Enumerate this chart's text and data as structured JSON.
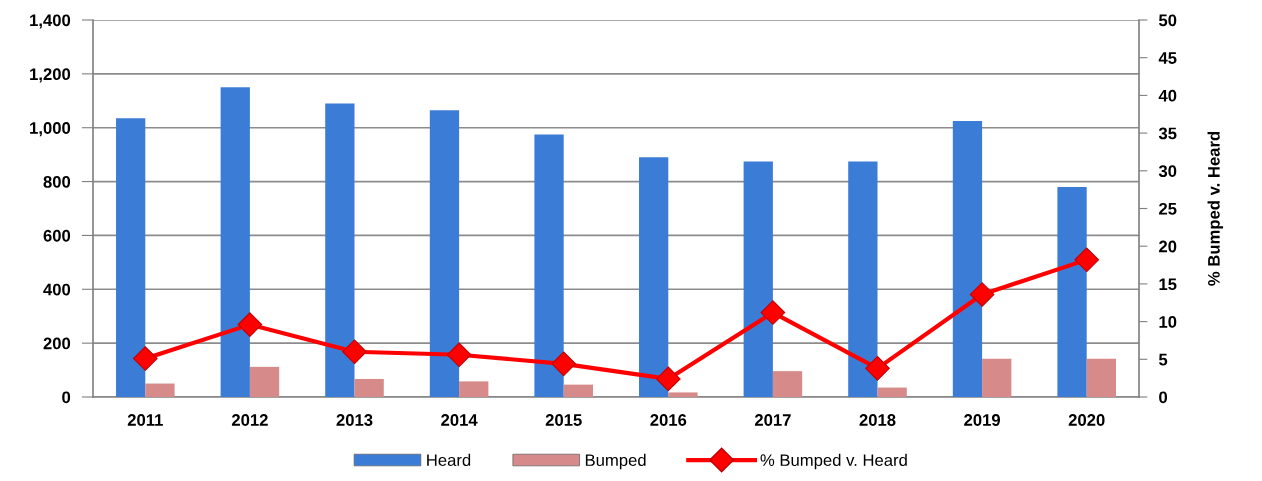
{
  "chart_data": {
    "type": "bar",
    "categories": [
      "2011",
      "2012",
      "2013",
      "2014",
      "2015",
      "2016",
      "2017",
      "2018",
      "2019",
      "2020"
    ],
    "series": [
      {
        "name": "Heard",
        "color": "#3b7dd6",
        "values": [
          1035,
          1150,
          1090,
          1065,
          975,
          890,
          875,
          875,
          1025,
          780
        ]
      },
      {
        "name": "Bumped",
        "color": "#d68a8a",
        "values": [
          50,
          112,
          67,
          58,
          46,
          17,
          96,
          35,
          142,
          142
        ]
      },
      {
        "name": "% Bumped v. Heard",
        "type": "line",
        "axis": "y2",
        "color": "#ff0000",
        "marker": "diamond",
        "values": [
          5.1,
          9.6,
          6.0,
          5.6,
          4.4,
          2.4,
          11.2,
          3.8,
          13.6,
          18.2
        ]
      }
    ],
    "y2label": "% Bumped v. Heard",
    "ylim": [
      0,
      1400
    ],
    "yticks": [
      0,
      200,
      400,
      600,
      800,
      {
        "value": 1000,
        "label": "1,000"
      },
      {
        "value": 1200,
        "label": "1,200"
      },
      {
        "value": 1400,
        "label": "1,400"
      }
    ],
    "y2lim": [
      0,
      50
    ],
    "y2ticks": [
      0,
      5,
      10,
      15,
      20,
      25,
      30,
      35,
      40,
      45,
      50
    ],
    "grid": "y",
    "legend": "bottom"
  }
}
